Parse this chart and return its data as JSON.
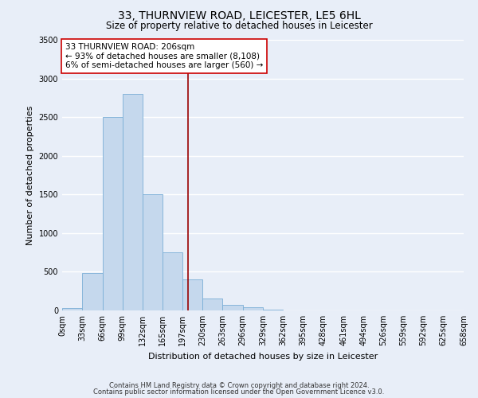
{
  "title": "33, THURNVIEW ROAD, LEICESTER, LE5 6HL",
  "subtitle": "Size of property relative to detached houses in Leicester",
  "xlabel": "Distribution of detached houses by size in Leicester",
  "ylabel": "Number of detached properties",
  "bin_edges": [
    0,
    33,
    66,
    99,
    132,
    165,
    197,
    230,
    263,
    296,
    329,
    362,
    395,
    428,
    461,
    494,
    526,
    559,
    592,
    625,
    658
  ],
  "bin_heights": [
    30,
    480,
    2500,
    2800,
    1500,
    750,
    400,
    150,
    75,
    40,
    10,
    5,
    2,
    0,
    0,
    0,
    0,
    0,
    0,
    0
  ],
  "bar_color": "#c5d8ed",
  "bar_edge_color": "#7aaed6",
  "property_size": 206,
  "vline_color": "#990000",
  "annotation_line1": "33 THURNVIEW ROAD: 206sqm",
  "annotation_line2": "← 93% of detached houses are smaller (8,108)",
  "annotation_line3": "6% of semi-detached houses are larger (560) →",
  "annotation_box_color": "#ffffff",
  "annotation_box_edge_color": "#cc0000",
  "ylim": [
    0,
    3500
  ],
  "yticks": [
    0,
    500,
    1000,
    1500,
    2000,
    2500,
    3000,
    3500
  ],
  "footer_line1": "Contains HM Land Registry data © Crown copyright and database right 2024.",
  "footer_line2": "Contains public sector information licensed under the Open Government Licence v3.0.",
  "bg_color": "#e8eef8",
  "grid_color": "#ffffff",
  "title_fontsize": 10,
  "subtitle_fontsize": 8.5,
  "axis_label_fontsize": 8,
  "tick_fontsize": 7,
  "annotation_fontsize": 7.5,
  "footer_fontsize": 6
}
